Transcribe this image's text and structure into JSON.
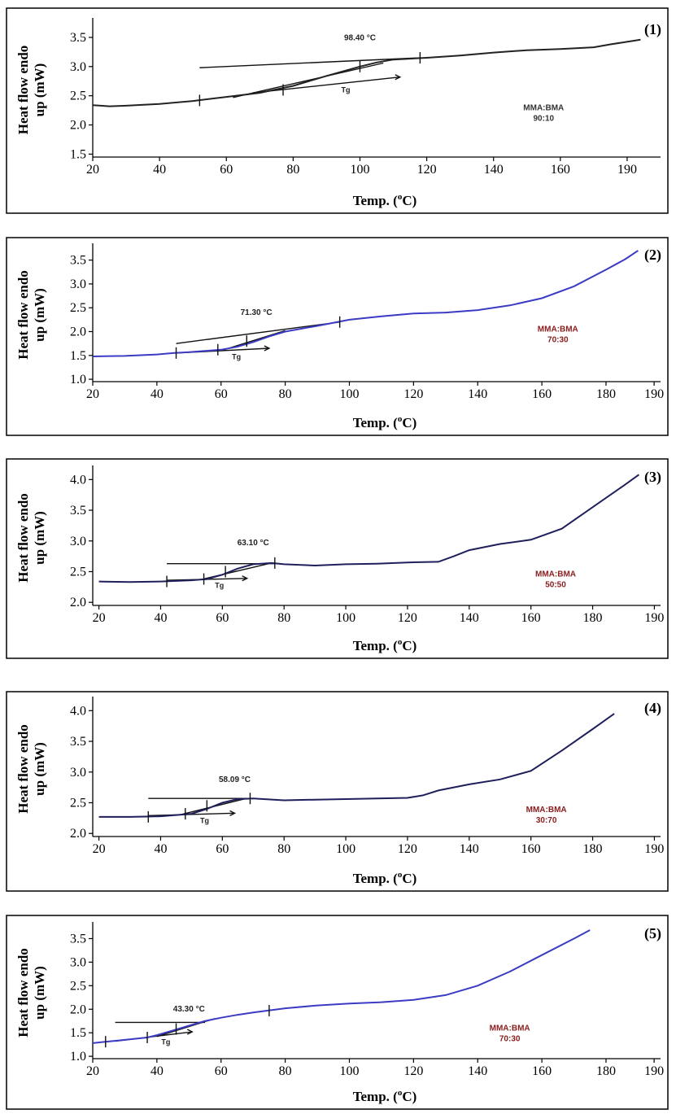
{
  "chart_data": [
    {
      "type": "line",
      "panel_label": "(1)",
      "xlabel": "Temp. (",
      "xlabel_sup": "o",
      "xlabel_end": "C)",
      "ylabel_line1": "Heat flow endo",
      "ylabel_line2": "up (mW)",
      "xticks": [
        20,
        40,
        60,
        80,
        100,
        120,
        140,
        160,
        190
      ],
      "xtick_positions": [
        20,
        40,
        60,
        80,
        100,
        120,
        140,
        160,
        180
      ],
      "xlim": [
        20,
        190
      ],
      "yticks": [
        "1.5",
        "2.0",
        "2.5",
        "3.0",
        "3.5"
      ],
      "ylim": [
        1.45,
        3.75
      ],
      "annotation": "98.40 °C",
      "annotation_at": [
        100,
        3.45
      ],
      "tg_label": "Tg",
      "composition_line1": "MMA:BMA",
      "composition_line2": "90:10",
      "composition_at": [
        155,
        2.25
      ],
      "curve_color": "#222222",
      "comp_color": "#333333",
      "curve": {
        "x": [
          20,
          25,
          30,
          40,
          50,
          60,
          70,
          80,
          90,
          100,
          105,
          110,
          120,
          130,
          140,
          150,
          160,
          170,
          175,
          184
        ],
        "y": [
          2.34,
          2.32,
          2.33,
          2.36,
          2.41,
          2.48,
          2.55,
          2.67,
          2.84,
          3.0,
          3.07,
          3.12,
          3.15,
          3.19,
          3.24,
          3.28,
          3.3,
          3.33,
          3.38,
          3.46
        ]
      },
      "baseline_upper": {
        "x": [
          52,
          118
        ],
        "y": [
          2.98,
          3.15
        ]
      },
      "tangent": {
        "x": [
          62,
          107
        ],
        "y": [
          2.47,
          3.06
        ]
      },
      "baseline_lower": {
        "x": [
          68,
          112
        ],
        "y": [
          2.55,
          2.82
        ]
      },
      "tick_marks": [
        [
          52,
          2.42
        ],
        [
          77,
          2.6
        ],
        [
          100,
          3.0
        ],
        [
          118,
          3.15
        ]
      ]
    },
    {
      "type": "line",
      "panel_label": "(2)",
      "xlabel": "Temp. (",
      "xlabel_sup": "o",
      "xlabel_end": "C)",
      "ylabel_line1": "Heat flow endo",
      "ylabel_line2": "up (mW)",
      "xticks": [
        20,
        40,
        60,
        80,
        100,
        120,
        140,
        160,
        180,
        190
      ],
      "xtick_positions": [
        20,
        40,
        60,
        80,
        100,
        120,
        140,
        160,
        180,
        195
      ],
      "xlim": [
        20,
        197
      ],
      "yticks": [
        "1.0",
        "1.5",
        "2.0",
        "2.5",
        "3.0",
        "3.5"
      ],
      "ylim": [
        0.95,
        3.75
      ],
      "annotation": "71.30 °C",
      "annotation_at": [
        71,
        2.35
      ],
      "tg_label": "Tg",
      "composition_line1": "MMA:BMA",
      "composition_line2": "70:30",
      "composition_at": [
        165,
        2.0
      ],
      "curve_color": "#3b3bc4",
      "comp_color": "#8a1c1c",
      "curve": {
        "x": [
          20,
          30,
          40,
          45,
          50,
          60,
          65,
          70,
          75,
          80,
          90,
          100,
          110,
          120,
          130,
          140,
          150,
          160,
          170,
          180,
          186,
          190
        ],
        "y": [
          1.48,
          1.49,
          1.52,
          1.55,
          1.57,
          1.62,
          1.68,
          1.78,
          1.9,
          2.0,
          2.12,
          2.25,
          2.32,
          2.38,
          2.4,
          2.45,
          2.55,
          2.7,
          2.95,
          3.3,
          3.52,
          3.7
        ]
      },
      "baseline_upper": {
        "x": [
          46,
          97
        ],
        "y": [
          1.75,
          2.2
        ]
      },
      "tangent": {
        "x": [
          60,
          80
        ],
        "y": [
          1.6,
          2.02
        ]
      },
      "baseline_lower": {
        "x": [
          46,
          75
        ],
        "y": [
          1.55,
          1.65
        ]
      },
      "tick_marks": [
        [
          46,
          1.55
        ],
        [
          59,
          1.62
        ],
        [
          68,
          1.8
        ],
        [
          97,
          2.2
        ]
      ]
    },
    {
      "type": "line",
      "panel_label": "(3)",
      "xlabel": "Temp. (",
      "xlabel_sup": "o",
      "xlabel_end": "C)",
      "ylabel_line1": "Heat flow endo",
      "ylabel_line2": "up (mW)",
      "xticks": [
        20,
        40,
        60,
        80,
        100,
        120,
        140,
        160,
        180,
        190
      ],
      "xtick_positions": [
        20,
        40,
        60,
        80,
        100,
        120,
        140,
        160,
        180,
        200
      ],
      "xlim": [
        18,
        202
      ],
      "yticks": [
        "2.0",
        "2.5",
        "3.0",
        "3.5",
        "4.0"
      ],
      "ylim": [
        1.95,
        4.15
      ],
      "annotation": "63.10 °C",
      "annotation_at": [
        70,
        2.93
      ],
      "tg_label": "Tg",
      "composition_line1": "MMA:BMA",
      "composition_line2": "50:50",
      "composition_at": [
        168,
        2.42
      ],
      "curve_color": "#1f1f5c",
      "comp_color": "#8a1c1c",
      "curve": {
        "x": [
          20,
          30,
          40,
          50,
          55,
          60,
          65,
          70,
          76,
          80,
          90,
          100,
          110,
          120,
          130,
          135,
          140,
          150,
          160,
          170,
          180,
          190,
          195
        ],
        "y": [
          2.34,
          2.33,
          2.34,
          2.36,
          2.38,
          2.45,
          2.55,
          2.62,
          2.64,
          2.62,
          2.6,
          2.62,
          2.63,
          2.65,
          2.66,
          2.75,
          2.85,
          2.95,
          3.02,
          3.2,
          3.55,
          3.9,
          4.08
        ]
      },
      "baseline_upper": {
        "x": [
          42,
          77
        ],
        "y": [
          2.63,
          2.63
        ]
      },
      "tangent": {
        "x": [
          53,
          75
        ],
        "y": [
          2.37,
          2.63
        ]
      },
      "baseline_lower": {
        "x": [
          42,
          68
        ],
        "y": [
          2.36,
          2.39
        ]
      },
      "tick_marks": [
        [
          42,
          2.34
        ],
        [
          54,
          2.38
        ],
        [
          61,
          2.5
        ],
        [
          77,
          2.64
        ]
      ]
    },
    {
      "type": "line",
      "panel_label": "(4)",
      "xlabel": "Temp. (",
      "xlabel_sup": "o",
      "xlabel_end": "C)",
      "ylabel_line1": "Heat flow endo",
      "ylabel_line2": "up (mW)",
      "xticks": [
        20,
        40,
        60,
        80,
        100,
        120,
        140,
        160,
        180,
        190
      ],
      "xtick_positions": [
        20,
        40,
        60,
        80,
        100,
        120,
        140,
        160,
        180,
        200
      ],
      "xlim": [
        18,
        202
      ],
      "yticks": [
        "2.0",
        "2.5",
        "3.0",
        "3.5",
        "4.0"
      ],
      "ylim": [
        1.95,
        4.15
      ],
      "annotation": "58.09 °C",
      "annotation_at": [
        64,
        2.84
      ],
      "tg_label": "Tg",
      "composition_line1": "MMA:BMA",
      "composition_line2": "30:70",
      "composition_at": [
        165,
        2.35
      ],
      "curve_color": "#1f1f5c",
      "comp_color": "#8a1c1c",
      "curve": {
        "x": [
          20,
          30,
          40,
          50,
          55,
          60,
          65,
          70,
          80,
          90,
          100,
          110,
          120,
          125,
          130,
          140,
          150,
          160,
          170,
          180,
          187
        ],
        "y": [
          2.27,
          2.27,
          2.28,
          2.32,
          2.4,
          2.5,
          2.56,
          2.57,
          2.54,
          2.55,
          2.56,
          2.57,
          2.58,
          2.62,
          2.7,
          2.8,
          2.88,
          3.02,
          3.35,
          3.7,
          3.95
        ]
      },
      "baseline_upper": {
        "x": [
          36,
          69
        ],
        "y": [
          2.57,
          2.57
        ]
      },
      "tangent": {
        "x": [
          46,
          67
        ],
        "y": [
          2.3,
          2.56
        ]
      },
      "baseline_lower": {
        "x": [
          36,
          64
        ],
        "y": [
          2.29,
          2.33
        ]
      },
      "tick_marks": [
        [
          36,
          2.27
        ],
        [
          48,
          2.32
        ],
        [
          55,
          2.45
        ],
        [
          69,
          2.57
        ]
      ]
    },
    {
      "type": "line",
      "panel_label": "(5)",
      "xlabel": "Temp. (",
      "xlabel_sup": "o",
      "xlabel_end": "C)",
      "ylabel_line1": "Heat flow endo",
      "ylabel_line2": "up (mW)",
      "xticks": [
        20,
        40,
        60,
        80,
        100,
        120,
        140,
        160,
        180,
        190
      ],
      "xtick_positions": [
        20,
        40,
        60,
        80,
        100,
        120,
        140,
        160,
        180,
        195
      ],
      "xlim": [
        20,
        197
      ],
      "yticks": [
        "1.0",
        "1.5",
        "2.0",
        "2.5",
        "3.0",
        "3.5"
      ],
      "ylim": [
        0.95,
        3.75
      ],
      "annotation": "43.30 °C",
      "annotation_at": [
        50,
        1.95
      ],
      "tg_label": "Tg",
      "composition_line1": "MMA:BMA",
      "composition_line2": "70:30",
      "composition_at": [
        150,
        1.55
      ],
      "curve_color": "#3b3bc4",
      "comp_color": "#8a1c1c",
      "curve": {
        "x": [
          20,
          24,
          30,
          37,
          40,
          45,
          50,
          55,
          60,
          65,
          70,
          80,
          90,
          100,
          110,
          120,
          130,
          140,
          150,
          160,
          170,
          175
        ],
        "y": [
          1.28,
          1.31,
          1.35,
          1.4,
          1.45,
          1.55,
          1.65,
          1.75,
          1.82,
          1.88,
          1.93,
          2.02,
          2.08,
          2.12,
          2.15,
          2.2,
          2.3,
          2.5,
          2.8,
          3.15,
          3.5,
          3.68
        ]
      },
      "baseline_upper": {
        "x": [
          27,
          55
        ],
        "y": [
          1.72,
          1.72
        ]
      },
      "tangent": {
        "x": [
          40,
          58
        ],
        "y": [
          1.42,
          1.8
        ]
      },
      "baseline_lower": {
        "x": [
          27,
          51
        ],
        "y": [
          1.32,
          1.52
        ]
      },
      "tick_marks": [
        [
          24,
          1.31
        ],
        [
          37,
          1.4
        ],
        [
          46,
          1.58
        ],
        [
          75,
          1.97
        ]
      ]
    }
  ]
}
